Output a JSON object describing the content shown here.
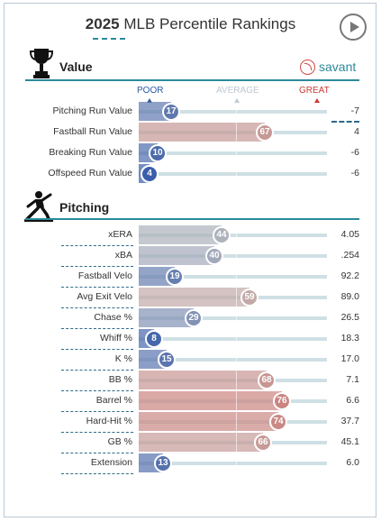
{
  "title": {
    "year": "2025",
    "rest": "MLB Percentile Rankings"
  },
  "icons": {
    "play": "play-icon",
    "value": "trophy-icon",
    "pitching": "pitcher-icon",
    "brand": "baseball-icon"
  },
  "brand": {
    "label": "savant"
  },
  "scale": {
    "poor": "POOR",
    "average": "AVERAGE",
    "great": "GREAT"
  },
  "colors": {
    "teal": "#2c8a9a",
    "poor": "#2c5aa0",
    "great": "#cc3a34"
  },
  "value_section": {
    "title": "Value",
    "rows": [
      {
        "label": "Pitching Run Value",
        "percentile": 17,
        "value": "-7"
      },
      {
        "label": "Fastball Run Value",
        "percentile": 67,
        "value": "4"
      },
      {
        "label": "Breaking Run Value",
        "percentile": 10,
        "value": "-6"
      },
      {
        "label": "Offspeed Run Value",
        "percentile": 4,
        "value": "-6"
      }
    ]
  },
  "pitching_section": {
    "title": "Pitching",
    "rows": [
      {
        "label": "xERA",
        "percentile": 44,
        "value": "4.05"
      },
      {
        "label": "xBA",
        "percentile": 40,
        "value": ".254"
      },
      {
        "label": "Fastball Velo",
        "percentile": 19,
        "value": "92.2"
      },
      {
        "label": "Avg Exit Velo",
        "percentile": 59,
        "value": "89.0"
      },
      {
        "label": "Chase %",
        "percentile": 29,
        "value": "26.5"
      },
      {
        "label": "Whiff %",
        "percentile": 8,
        "value": "18.3"
      },
      {
        "label": "K %",
        "percentile": 15,
        "value": "17.0"
      },
      {
        "label": "BB %",
        "percentile": 68,
        "value": "7.1"
      },
      {
        "label": "Barrel %",
        "percentile": 76,
        "value": "6.6"
      },
      {
        "label": "Hard-Hit %",
        "percentile": 74,
        "value": "37.7"
      },
      {
        "label": "GB %",
        "percentile": 66,
        "value": "45.1"
      },
      {
        "label": "Extension",
        "percentile": 13,
        "value": "6.0"
      }
    ]
  }
}
